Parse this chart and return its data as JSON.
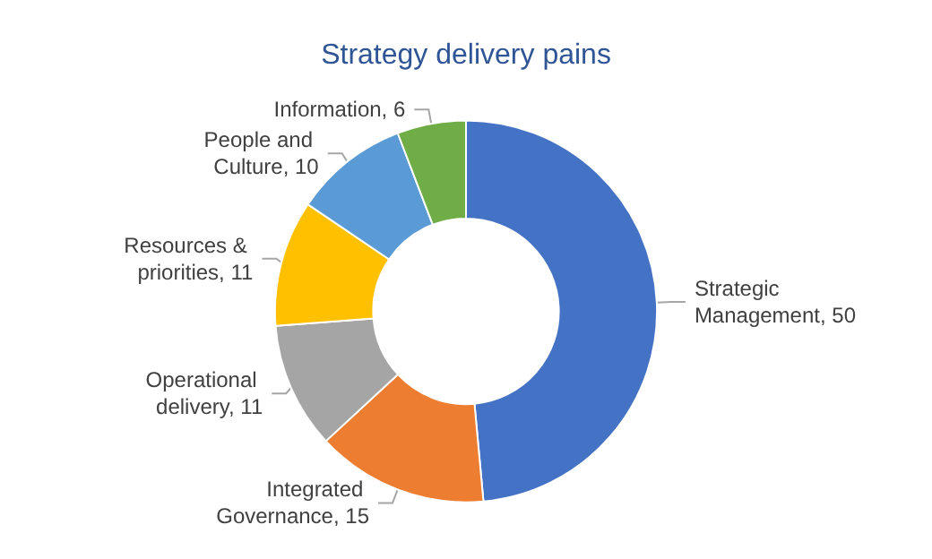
{
  "chart_data": {
    "type": "donut",
    "title": "Strategy delivery pains",
    "categories": [
      "Strategic Management",
      "Integrated Governance",
      "Operational delivery",
      "Resources & priorities",
      "People and Culture",
      "Information"
    ],
    "values": [
      50,
      15,
      11,
      11,
      10,
      6
    ],
    "colors": [
      "#4472c4",
      "#ed7d31",
      "#a5a5a5",
      "#ffc000",
      "#5b9bd5",
      "#70ad47"
    ],
    "value_labels": [
      "50",
      "15",
      "11",
      "11",
      "10",
      "6"
    ],
    "legend": false
  }
}
